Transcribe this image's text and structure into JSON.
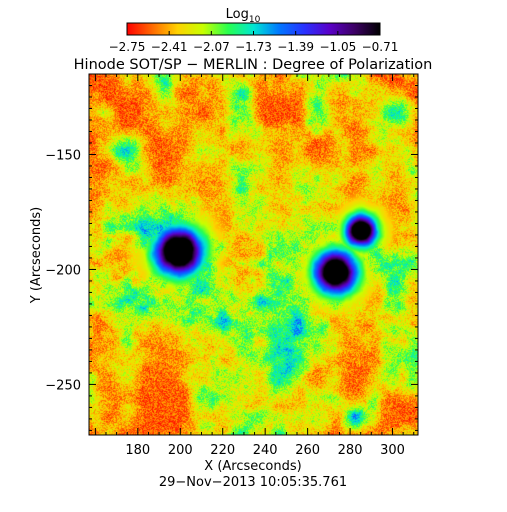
{
  "chart_data": {
    "type": "heatmap",
    "title": "Hinode SOT/SP − MERLIN : Degree of Polarization",
    "xlabel": "X (Arcseconds)",
    "ylabel": "Y (Arcseconds)",
    "xlim": [
      157,
      312
    ],
    "ylim": [
      -272,
      -115
    ],
    "xticks": [
      180,
      200,
      220,
      240,
      260,
      280,
      300
    ],
    "yticks": [
      -150,
      -200,
      -250
    ],
    "xtick_labels": [
      "180",
      "200",
      "220",
      "240",
      "260",
      "280",
      "300"
    ],
    "ytick_labels": [
      "−150",
      "−200",
      "−250"
    ],
    "colorbar": {
      "label_main": "Log",
      "label_sub": "10",
      "range": [
        -2.75,
        -0.71
      ],
      "ticks": [
        -2.75,
        -2.41,
        -2.07,
        -1.73,
        -1.39,
        -1.05,
        -0.71
      ],
      "tick_labels": [
        "−2.75",
        "−2.41",
        "−2.07",
        "−1.73",
        "−1.39",
        "−1.05",
        "−0.71"
      ],
      "colors": [
        "#ff0000",
        "#ff6a00",
        "#ffd200",
        "#c8ff00",
        "#28ff50",
        "#00e6d2",
        "#0078ff",
        "#2832ff",
        "#5a00c8",
        "#3c0064",
        "#000000"
      ]
    },
    "features": [
      {
        "name": "sunspot",
        "x": 199,
        "y": -192,
        "radius": 9,
        "value": -0.75
      },
      {
        "name": "sunspot",
        "x": 285,
        "y": -183,
        "radius": 6,
        "value": -0.85
      },
      {
        "name": "sunspot",
        "x": 273,
        "y": -201,
        "radius": 8,
        "value": -0.9
      }
    ],
    "footer": "29−Nov−2013 10:05:35.761"
  }
}
